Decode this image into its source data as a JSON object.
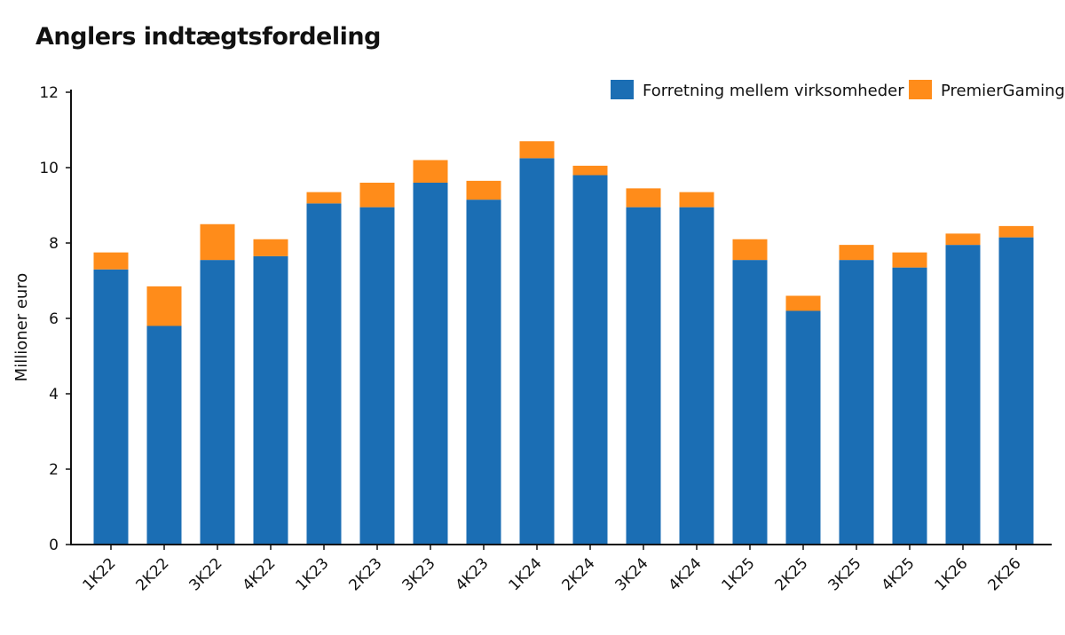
{
  "chart_data": {
    "type": "bar",
    "stacked": true,
    "title": "Anglers indtægtsfordeling",
    "xlabel": "",
    "ylabel": "Millioner euro",
    "ylim": [
      0,
      12
    ],
    "yticks": [
      0,
      2,
      4,
      6,
      8,
      10,
      12
    ],
    "grid": false,
    "legend_position": "top-right",
    "categories": [
      "1K22",
      "2K22",
      "3K22",
      "4K22",
      "1K23",
      "2K23",
      "3K23",
      "4K23",
      "1K24",
      "2K24",
      "3K24",
      "4K24",
      "1K25",
      "2K25",
      "3K25",
      "4K25",
      "1K26",
      "2K26"
    ],
    "series": [
      {
        "name": "Forretning mellem virksomheder",
        "color": "#1b6eb4",
        "values": [
          7.3,
          5.8,
          7.55,
          7.65,
          9.05,
          8.95,
          9.6,
          9.15,
          10.25,
          9.8,
          8.95,
          8.95,
          7.55,
          6.2,
          7.55,
          7.35,
          7.95,
          8.15
        ]
      },
      {
        "name": "PremierGaming",
        "color": "#ff8c1a",
        "values": [
          0.45,
          1.05,
          0.95,
          0.45,
          0.3,
          0.65,
          0.6,
          0.5,
          0.45,
          0.25,
          0.5,
          0.4,
          0.55,
          0.4,
          0.4,
          0.4,
          0.3,
          0.3
        ]
      }
    ]
  }
}
